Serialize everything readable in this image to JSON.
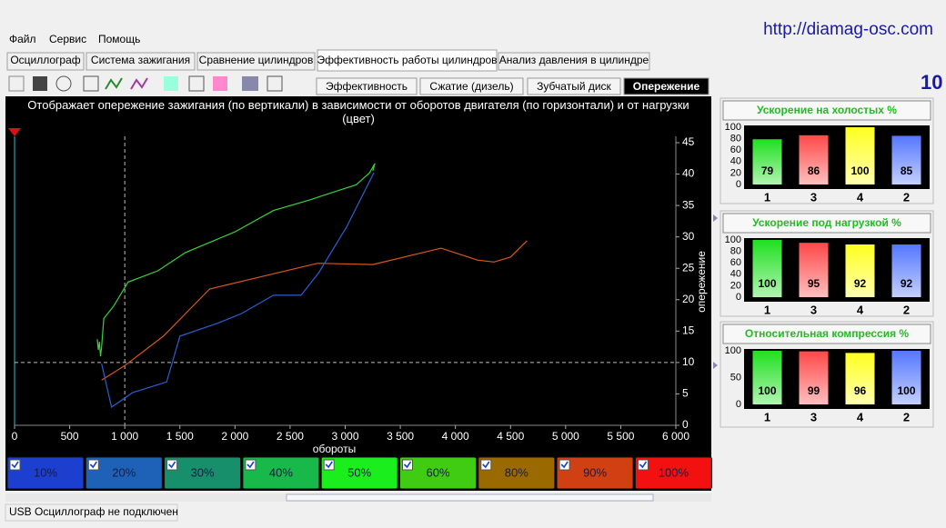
{
  "url": "http://diamag-osc.com",
  "corner_text": "10",
  "menu": [
    "Файл",
    "Сервис",
    "Помощь"
  ],
  "tabs": [
    "Осциллограф",
    "Система зажигания",
    "Сравнение цилиндров",
    "Эффективность работы цилиндров",
    "Анализ давления в цилиндре"
  ],
  "active_tab": 3,
  "subtabs": [
    "Эффективность",
    "Сжатие (дизель)",
    "Зубчатый диск",
    "Опережение"
  ],
  "active_subtab": 3,
  "chart_data": [
    {
      "type": "line",
      "title": "Отображает опережение зажигания (по вертикали) в зависимости от оборотов двигателя (по горизонтали) и от нагрузки (цвет)",
      "x_label": "обороты",
      "y_label": "опережение",
      "xlim": [
        0,
        6000
      ],
      "xticks": [
        0,
        500,
        {
          "value": 1000,
          "label": "1 000"
        },
        {
          "value": 1500,
          "label": "1 500"
        },
        {
          "value": 2000,
          "label": "2 000"
        },
        {
          "value": 2500,
          "label": "2 500"
        },
        {
          "value": 3000,
          "label": "3 000"
        },
        {
          "value": 3500,
          "label": "3 500"
        },
        {
          "value": 4000,
          "label": "4 000"
        },
        {
          "value": 4500,
          "label": "4 500"
        },
        {
          "value": 5000,
          "label": "5 000"
        },
        {
          "value": 5500,
          "label": "5 500"
        },
        {
          "value": 6000,
          "label": "6 000"
        }
      ],
      "ylim": [
        0,
        45
      ],
      "yticks": [
        0,
        5,
        10,
        15,
        20,
        25,
        30,
        35,
        40,
        45
      ],
      "cursor": {
        "x": 1000,
        "y": 10
      },
      "series": [
        {
          "color": "#3ad23a",
          "x": [
            750,
            760,
            770,
            780,
            790,
            810,
            900,
            1030,
            1300,
            1550,
            2000,
            2350,
            2680,
            2800,
            3100,
            3220,
            3270,
            3250
          ],
          "values": [
            13.7,
            12,
            13.3,
            11,
            12.5,
            17,
            19,
            22.8,
            24.6,
            27.5,
            30.8,
            34.2,
            35.9,
            36.6,
            38.3,
            40.2,
            41.7,
            40.5
          ]
        },
        {
          "color": "#d8581a",
          "x": [
            790,
            1000,
            1350,
            1770,
            2200,
            2750,
            3250,
            3870,
            4200,
            4350,
            4500,
            4650
          ],
          "values": [
            7.2,
            9.5,
            14.2,
            21.7,
            23.5,
            25.8,
            25.6,
            28.2,
            26.3,
            26,
            26.8,
            29.4
          ]
        },
        {
          "color": "#2a5fd0",
          "x": [
            790,
            880,
            1070,
            1380,
            1500,
            1850,
            2060,
            2350,
            2600,
            2760,
            3010,
            3260
          ],
          "values": [
            9.8,
            2.9,
            5.2,
            6.9,
            14.2,
            16.3,
            17.8,
            20.7,
            20.7,
            24.3,
            31.5,
            40.2
          ]
        }
      ]
    },
    {
      "type": "bar",
      "title": "Ускорение на холостых %",
      "categories": [
        "1",
        "3",
        "4",
        "2"
      ],
      "values": [
        79,
        86,
        100,
        85
      ],
      "colors": [
        "#20e020",
        "#ff4848",
        "#ffff20",
        "#5577ff"
      ],
      "ylim": [
        0,
        100
      ],
      "yticks": [
        0,
        20,
        40,
        60,
        80,
        100
      ]
    },
    {
      "type": "bar",
      "title": "Ускорение под нагрузкой %",
      "categories": [
        "1",
        "3",
        "4",
        "2"
      ],
      "values": [
        100,
        95,
        92,
        92
      ],
      "colors": [
        "#20e020",
        "#ff4848",
        "#ffff20",
        "#5577ff"
      ],
      "ylim": [
        0,
        100
      ],
      "yticks": [
        0,
        20,
        40,
        60,
        80,
        100
      ]
    },
    {
      "type": "bar",
      "title": "Относительная компрессия %",
      "categories": [
        "1",
        "3",
        "4",
        "2"
      ],
      "values": [
        100,
        99,
        96,
        100
      ],
      "colors": [
        "#20e020",
        "#ff4848",
        "#ffff20",
        "#5577ff"
      ],
      "ylim": [
        0,
        100
      ],
      "yticks": [
        0,
        50,
        100
      ]
    }
  ],
  "load_buttons": [
    {
      "label": "10%",
      "color": "#1c3fcf"
    },
    {
      "label": "20%",
      "color": "#1e62b8"
    },
    {
      "label": "30%",
      "color": "#178f6a"
    },
    {
      "label": "40%",
      "color": "#18b84a"
    },
    {
      "label": "50%",
      "color": "#1aee1c"
    },
    {
      "label": "60%",
      "color": "#3fcc12"
    },
    {
      "label": "80%",
      "color": "#9a6a00"
    },
    {
      "label": "90%",
      "color": "#d04012"
    },
    {
      "label": "100%",
      "color": "#f21010"
    }
  ],
  "status": "USB Осциллограф не подключен"
}
